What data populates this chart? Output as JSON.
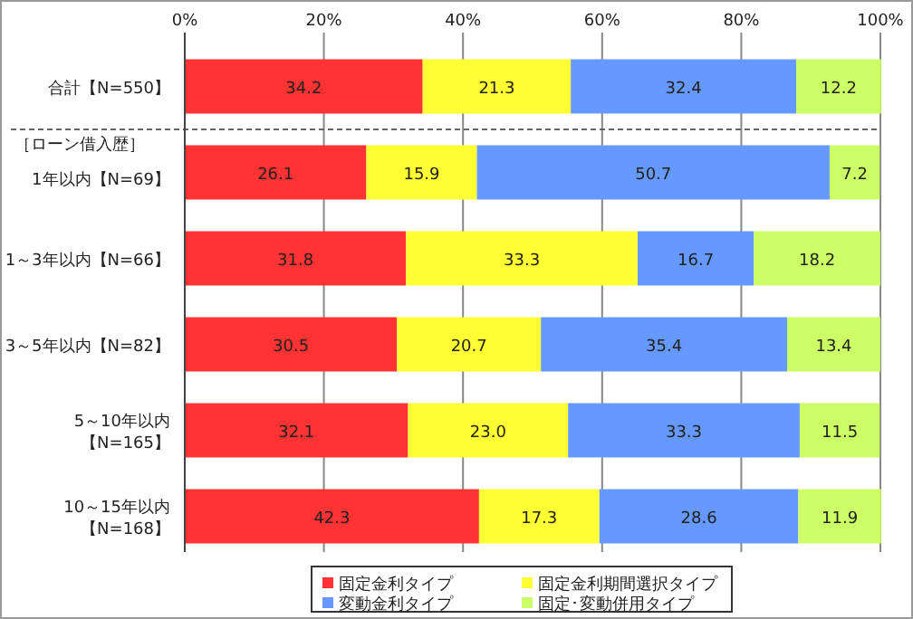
{
  "chart_data": {
    "type": "bar",
    "orientation": "horizontal",
    "stacked": true,
    "categories": [
      "合計【N=550】",
      "1年以内【N=69】",
      "1～3年以内【N=66】",
      "3～5年以内【N=82】",
      "5～10年以内【N=165】",
      "10～15年以内【N=168】"
    ],
    "series": [
      {
        "name": "固定金利タイプ",
        "color": "#ff3333",
        "values": [
          34.2,
          26.1,
          31.8,
          30.5,
          32.1,
          42.3
        ],
        "value_labels": [
          "34.2",
          "26.1",
          "31.8",
          "30.5",
          "32.1",
          "42.3"
        ]
      },
      {
        "name": "固定金利期間選択タイプ",
        "color": "#ffff33",
        "values": [
          21.3,
          15.9,
          33.3,
          20.7,
          23.0,
          17.3
        ],
        "value_labels": [
          "21.3",
          "15.9",
          "33.3",
          "20.7",
          "23.0",
          "17.3"
        ]
      },
      {
        "name": "変動金利タイプ",
        "color": "#6699ff",
        "values": [
          32.4,
          50.7,
          16.7,
          35.4,
          33.3,
          28.6
        ],
        "value_labels": [
          "32.4",
          "50.7",
          "16.7",
          "35.4",
          "33.3",
          "28.6"
        ]
      },
      {
        "name": "固定･変動併用タイプ",
        "color": "#ccff66",
        "values": [
          12.2,
          7.2,
          18.2,
          13.4,
          11.5,
          11.9
        ],
        "value_labels": [
          "12.2",
          "7.2",
          "18.2",
          "13.4",
          "11.5",
          "11.9"
        ]
      }
    ],
    "xlim": [
      0,
      100
    ],
    "xticks": [
      {
        "value": 0,
        "label": "0%"
      },
      {
        "value": 20,
        "label": "20%"
      },
      {
        "value": 40,
        "label": "40%"
      },
      {
        "value": 60,
        "label": "60%"
      },
      {
        "value": 80,
        "label": "80%"
      },
      {
        "value": 100,
        "label": "100%"
      }
    ],
    "annotations": [
      "［ローン借入歴］"
    ],
    "grid": "x",
    "legend": "bottom"
  }
}
